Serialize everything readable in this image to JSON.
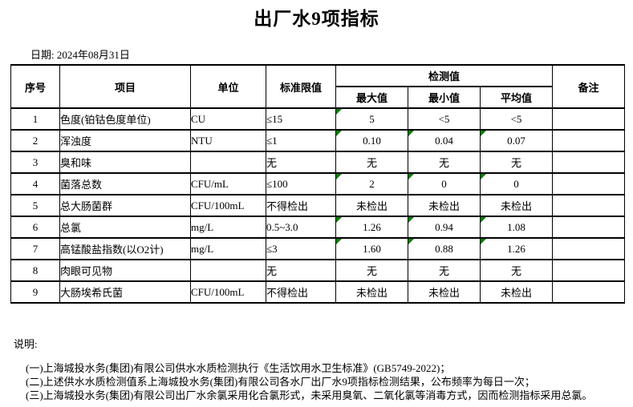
{
  "title": "出厂水9项指标",
  "date": {
    "label": "日期:",
    "value": "2024年08月31日"
  },
  "table": {
    "headers": {
      "index": "序号",
      "item": "项目",
      "unit": "单位",
      "standard": "标准限值",
      "detection": "检测值",
      "max": "最大值",
      "min": "最小值",
      "avg": "平均值",
      "remark": "备注"
    },
    "rows": [
      {
        "no": "1",
        "item": "色度(铂钴色度单位)",
        "unit": "CU",
        "standard": "≤15",
        "max": "5",
        "min": "<5",
        "avg": "<5",
        "remark": "",
        "flags": [
          "max"
        ]
      },
      {
        "no": "2",
        "item": "浑浊度",
        "unit": "NTU",
        "standard": "≤1",
        "max": "0.10",
        "min": "0.04",
        "avg": "0.07",
        "remark": "",
        "flags": [
          "max",
          "min",
          "avg"
        ]
      },
      {
        "no": "3",
        "item": "臭和味",
        "unit": "",
        "standard": "无",
        "max": "无",
        "min": "无",
        "avg": "无",
        "remark": "",
        "flags": []
      },
      {
        "no": "4",
        "item": "菌落总数",
        "unit": "CFU/mL",
        "standard": "≤100",
        "max": "2",
        "min": "0",
        "avg": "0",
        "remark": "",
        "flags": [
          "max",
          "min",
          "avg"
        ]
      },
      {
        "no": "5",
        "item": "总大肠菌群",
        "unit": "CFU/100mL",
        "standard": "不得检出",
        "max": "未检出",
        "min": "未检出",
        "avg": "未检出",
        "remark": "",
        "flags": []
      },
      {
        "no": "6",
        "item": "总氯",
        "unit": "mg/L",
        "standard": "0.5~3.0",
        "max": "1.26",
        "min": "0.94",
        "avg": "1.08",
        "remark": "",
        "flags": [
          "max",
          "min",
          "avg"
        ]
      },
      {
        "no": "7",
        "item": "高锰酸盐指数(以O2计)",
        "unit": "mg/L",
        "standard": "≤3",
        "max": "1.60",
        "min": "0.88",
        "avg": "1.26",
        "remark": "",
        "flags": [
          "max",
          "min",
          "avg"
        ]
      },
      {
        "no": "8",
        "item": "肉眼可见物",
        "unit": "",
        "standard": "无",
        "max": "无",
        "min": "无",
        "avg": "无",
        "remark": "",
        "flags": []
      },
      {
        "no": "9",
        "item": "大肠埃希氏菌",
        "unit": "CFU/100mL",
        "standard": "不得检出",
        "max": "未检出",
        "min": "未检出",
        "avg": "未检出",
        "remark": "",
        "flags": []
      }
    ]
  },
  "notes": {
    "label": "说明:",
    "items": [
      "(一)上海城投水务(集团)有限公司供水水质检测执行《生活饮用水卫生标准》(GB5749-2022)；",
      "(二)上述供水水质检测值系上海城投水务(集团)有限公司各水厂出厂水9项指标检测结果，公布频率为每日一次；",
      "(三)上海城投水务(集团)有限公司出厂水余氯采用化合氯形式，未采用臭氧、二氧化氯等消毒方式，因而检测指标采用总氯。"
    ]
  },
  "colors": {
    "flag_green": "#008000",
    "border": "#000000",
    "text": "#000000",
    "background": "#ffffff"
  }
}
